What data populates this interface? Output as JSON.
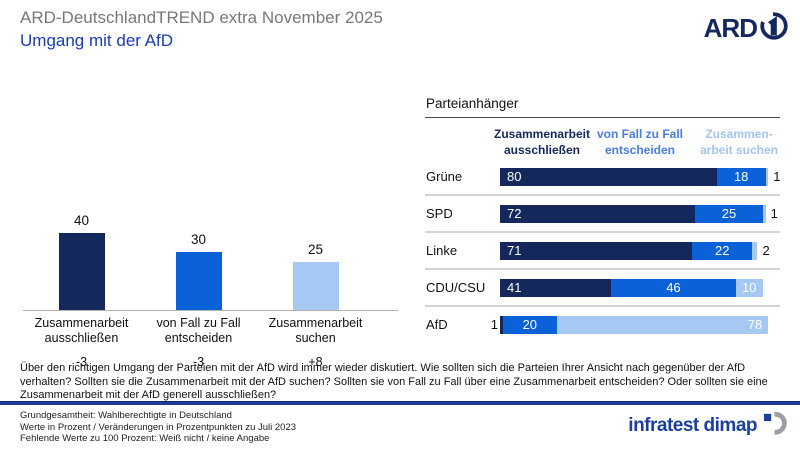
{
  "header": {
    "supertitle": "ARD-DeutschlandTREND extra November 2025",
    "title": "Umgang mit der AfD",
    "ard_logo_text": "ARD"
  },
  "colors": {
    "dark_navy": "#15285c",
    "medium_blue": "#0b62d8",
    "light_blue": "#a6c9f4",
    "divider_blue": "#1e3c96",
    "title_blue": "#1a3cae",
    "supertitle_gray": "#77787a"
  },
  "chart_data": [
    {
      "type": "bar",
      "title": "",
      "categories": [
        "Zusammenarbeit ausschließen",
        "von Fall zu Fall entscheiden",
        "Zusammenarbeit suchen"
      ],
      "values": [
        40,
        30,
        25
      ],
      "changes": [
        "-3",
        "-3",
        "+8"
      ],
      "bar_colors": [
        "#15285c",
        "#0b62d8",
        "#a6c9f4"
      ],
      "xlabel": "",
      "ylabel": "",
      "ylim": [
        0,
        52
      ],
      "grid": false
    },
    {
      "type": "stacked-bar-horizontal",
      "title": "Parteianhänger",
      "categories": [
        "Grüne",
        "SPD",
        "Linke",
        "CDU/CSU",
        "AfD"
      ],
      "series": [
        {
          "name": "Zusammenarbeit ausschließen",
          "color": "#15285c",
          "values": [
            80,
            72,
            71,
            41,
            1
          ]
        },
        {
          "name": "von Fall zu Fall entscheiden",
          "color": "#0b62d8",
          "values": [
            18,
            25,
            22,
            46,
            20
          ]
        },
        {
          "name": "Zusammenarbeit suchen",
          "color": "#a6c9f4",
          "values": [
            1,
            1,
            2,
            10,
            78
          ]
        }
      ],
      "header_labels": [
        [
          "Zusammenarbeit",
          "ausschließen"
        ],
        [
          "von Fall zu Fall",
          "entscheiden"
        ],
        [
          "Zusammen-",
          "arbeit suchen"
        ]
      ],
      "header_label_colors": [
        "#15285c",
        "#477de0",
        "#a3c4ef"
      ],
      "xlim": [
        0,
        100
      ],
      "legend_position": "top"
    }
  ],
  "question": "Über den richtigen Umgang der Parteien mit der AfD wird immer wieder diskutiert. Wie sollten sich die Parteien Ihrer Ansicht nach gegenüber der AfD verhalten? Sollten sie die Zusammenarbeit mit der AfD suchen? Sollten sie von Fall zu Fall über eine Zusammenarbeit entscheiden? Oder sollten sie eine Zusammenarbeit mit der AfD generell ausschließen?",
  "footer": {
    "lines": [
      "Grundgesamtheit: Wahlberechtigte in Deutschland",
      "Werte in Prozent / Veränderungen in Prozentpunkten zu Juli 2023",
      "Fehlende Werte zu 100 Prozent: Weiß nicht / keine Angabe"
    ],
    "agency": "infratest dimap"
  }
}
